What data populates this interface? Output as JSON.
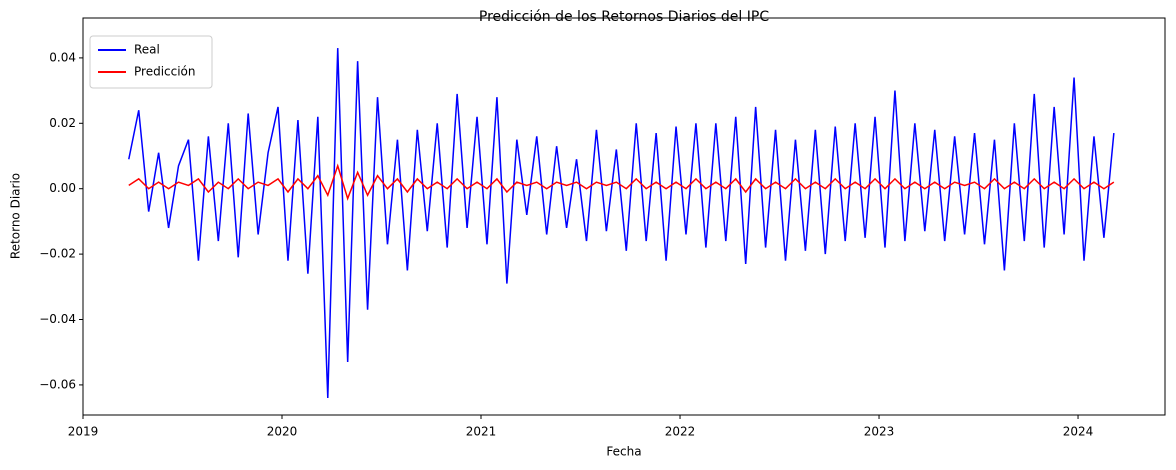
{
  "chart_data": {
    "type": "line",
    "title": "Predicción de los Retornos Diarios del IPC",
    "xlabel": "Fecha",
    "ylabel": "Retorno Diario",
    "x": [
      2019.23,
      2019.28,
      2019.33,
      2019.38,
      2019.43,
      2019.48,
      2019.53,
      2019.58,
      2019.63,
      2019.68,
      2019.73,
      2019.78,
      2019.83,
      2019.88,
      2019.93,
      2019.98,
      2020.03,
      2020.08,
      2020.13,
      2020.18,
      2020.23,
      2020.28,
      2020.33,
      2020.38,
      2020.43,
      2020.48,
      2020.53,
      2020.58,
      2020.63,
      2020.68,
      2020.73,
      2020.78,
      2020.83,
      2020.88,
      2020.93,
      2020.98,
      2021.03,
      2021.08,
      2021.13,
      2021.18,
      2021.23,
      2021.28,
      2021.33,
      2021.38,
      2021.43,
      2021.48,
      2021.53,
      2021.58,
      2021.63,
      2021.68,
      2021.73,
      2021.78,
      2021.83,
      2021.88,
      2021.93,
      2021.98,
      2022.03,
      2022.08,
      2022.13,
      2022.18,
      2022.23,
      2022.28,
      2022.33,
      2022.38,
      2022.43,
      2022.48,
      2022.53,
      2022.58,
      2022.63,
      2022.68,
      2022.73,
      2022.78,
      2022.83,
      2022.88,
      2022.93,
      2022.98,
      2023.03,
      2023.08,
      2023.13,
      2023.18,
      2023.23,
      2023.28,
      2023.33,
      2023.38,
      2023.43,
      2023.48,
      2023.53,
      2023.58,
      2023.63,
      2023.68,
      2023.73,
      2023.78,
      2023.83,
      2023.88,
      2023.93,
      2023.98,
      2024.03,
      2024.08,
      2024.13,
      2024.18
    ],
    "series": [
      {
        "name": "Real",
        "color": "#0000ff",
        "values": [
          0.009,
          0.024,
          -0.007,
          0.011,
          -0.012,
          0.007,
          0.015,
          -0.022,
          0.016,
          -0.016,
          0.02,
          -0.021,
          0.023,
          -0.014,
          0.011,
          0.025,
          -0.022,
          0.021,
          -0.026,
          0.022,
          -0.064,
          0.043,
          -0.053,
          0.039,
          -0.037,
          0.028,
          -0.017,
          0.015,
          -0.025,
          0.018,
          -0.013,
          0.02,
          -0.018,
          0.029,
          -0.012,
          0.022,
          -0.017,
          0.028,
          -0.029,
          0.015,
          -0.008,
          0.016,
          -0.014,
          0.013,
          -0.012,
          0.009,
          -0.016,
          0.018,
          -0.013,
          0.012,
          -0.019,
          0.02,
          -0.016,
          0.017,
          -0.022,
          0.019,
          -0.014,
          0.02,
          -0.018,
          0.02,
          -0.016,
          0.022,
          -0.023,
          0.025,
          -0.018,
          0.018,
          -0.022,
          0.015,
          -0.019,
          0.018,
          -0.02,
          0.019,
          -0.016,
          0.02,
          -0.015,
          0.022,
          -0.018,
          0.03,
          -0.016,
          0.02,
          -0.013,
          0.018,
          -0.016,
          0.016,
          -0.014,
          0.017,
          -0.017,
          0.015,
          -0.025,
          0.02,
          -0.016,
          0.029,
          -0.018,
          0.025,
          -0.014,
          0.034,
          -0.022,
          0.016,
          -0.015,
          0.017
        ]
      },
      {
        "name": "Predicción",
        "color": "#ff0000",
        "values": [
          0.001,
          0.003,
          0.0,
          0.002,
          0.0,
          0.002,
          0.001,
          0.003,
          -0.001,
          0.002,
          0.0,
          0.003,
          0.0,
          0.002,
          0.001,
          0.003,
          -0.001,
          0.003,
          0.0,
          0.004,
          -0.002,
          0.007,
          -0.003,
          0.005,
          -0.002,
          0.004,
          0.0,
          0.003,
          -0.001,
          0.003,
          0.0,
          0.002,
          0.0,
          0.003,
          0.0,
          0.002,
          0.0,
          0.003,
          -0.001,
          0.002,
          0.001,
          0.002,
          0.0,
          0.002,
          0.001,
          0.002,
          0.0,
          0.002,
          0.001,
          0.002,
          0.0,
          0.003,
          0.0,
          0.002,
          0.0,
          0.002,
          0.0,
          0.003,
          0.0,
          0.002,
          0.0,
          0.003,
          -0.001,
          0.003,
          0.0,
          0.002,
          0.0,
          0.003,
          0.0,
          0.002,
          0.0,
          0.003,
          0.0,
          0.002,
          0.0,
          0.003,
          0.0,
          0.003,
          0.0,
          0.002,
          0.0,
          0.002,
          0.0,
          0.002,
          0.001,
          0.002,
          0.0,
          0.003,
          0.0,
          0.002,
          0.0,
          0.003,
          0.0,
          0.002,
          0.0,
          0.003,
          0.0,
          0.002,
          0.0,
          0.002
        ]
      }
    ],
    "xlim": [
      2019.0,
      2024.437
    ],
    "xticks": [
      2019,
      2020,
      2021,
      2022,
      2023,
      2024
    ],
    "ylim": [
      -0.0692,
      0.0522
    ],
    "yticks": [
      {
        "value": -0.06,
        "label": "−0.06"
      },
      {
        "value": -0.04,
        "label": "−0.04"
      },
      {
        "value": -0.02,
        "label": "−0.02"
      },
      {
        "value": 0,
        "label": "0.00"
      },
      {
        "value": 0.02,
        "label": "0.02"
      },
      {
        "value": 0.04,
        "label": "0.04"
      }
    ],
    "grid": false,
    "legend": "upper-left"
  }
}
